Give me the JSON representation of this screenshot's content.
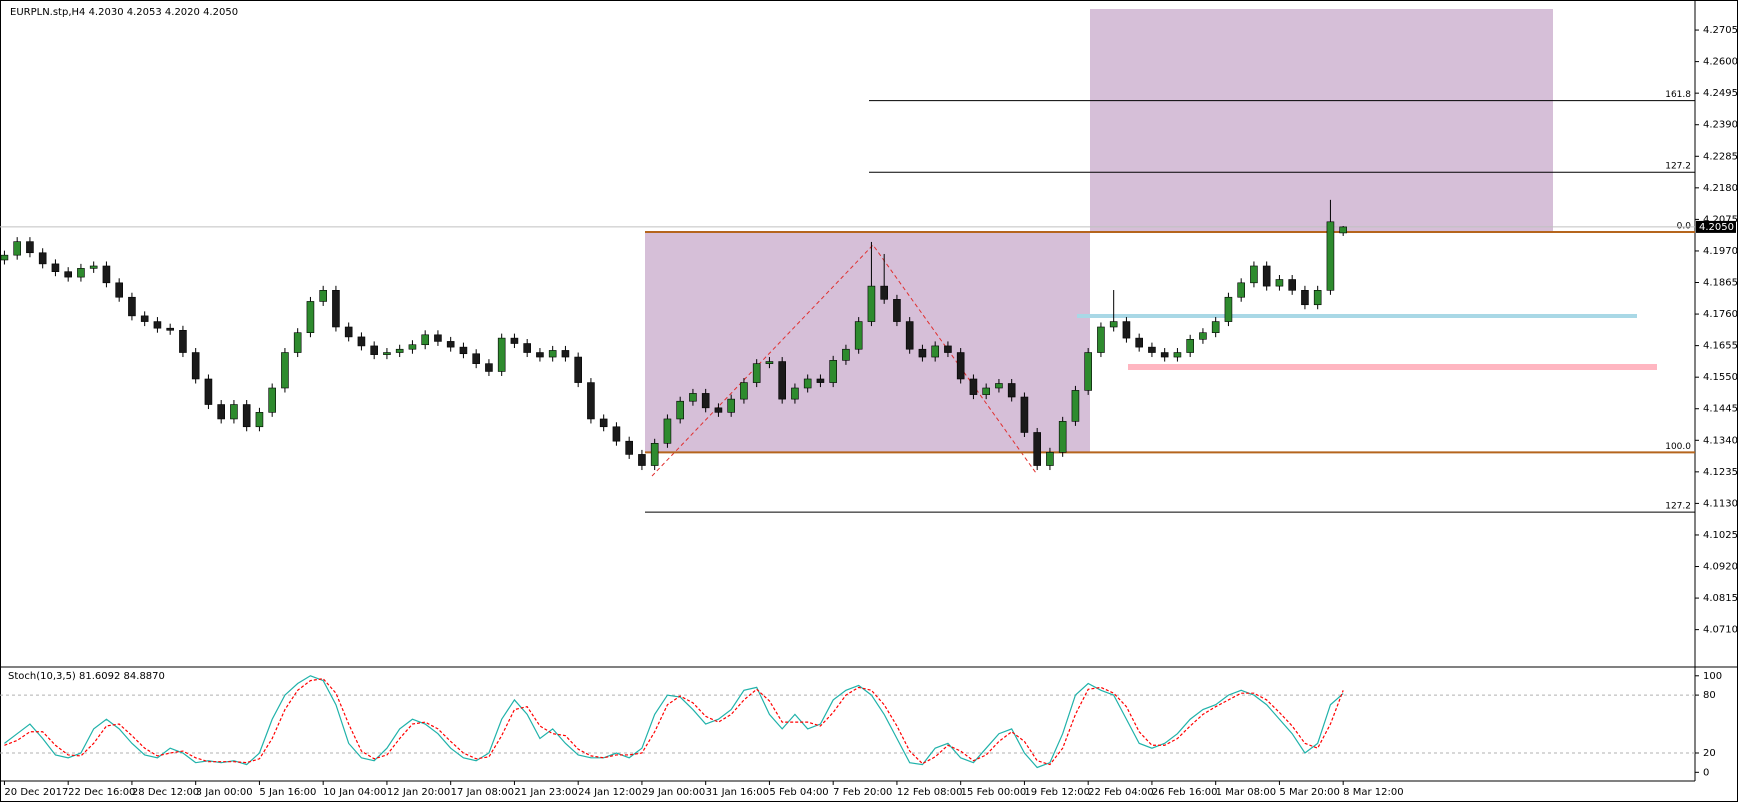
{
  "chart_data": {
    "type": "candlestick",
    "title": "EURPLN.stp,H4  4.2030 4.2053 4.2020 4.2050",
    "current_price_label": "4.2050",
    "ylim": [
      4.0589,
      4.2805
    ],
    "yticks": [
      4.2705,
      {
        "value": 4.26,
        "label": "4.2600"
      },
      4.2495,
      {
        "value": 4.239,
        "label": "4.2390"
      },
      4.2285,
      {
        "value": 4.218,
        "label": "4.2180"
      },
      4.2075,
      {
        "value": 4.197,
        "label": "4.1970"
      },
      4.1865,
      {
        "value": 4.176,
        "label": "4.1760"
      },
      4.1655,
      {
        "value": 4.155,
        "label": "4.1550"
      },
      4.1445,
      {
        "value": 4.134,
        "label": "4.1340"
      },
      4.1235,
      {
        "value": 4.113,
        "label": "4.1130"
      },
      4.1025,
      {
        "value": 4.092,
        "label": "4.0920"
      },
      4.0815,
      {
        "value": 4.071,
        "label": "4.0710"
      }
    ],
    "x_labels": [
      "20 Dec 2017",
      "22 Dec 16:00",
      "28 Dec 12:00",
      "3 Jan 00:00",
      "5 Jan 16:00",
      "10 Jan 04:00",
      "12 Jan 20:00",
      "17 Jan 08:00",
      "21 Jan 23:00",
      "24 Jan 12:00",
      "29 Jan 00:00",
      "31 Jan 16:00",
      "5 Feb 04:00",
      "7 Feb 20:00",
      "12 Feb 08:00",
      "15 Feb 00:00",
      "19 Feb 12:00",
      "22 Feb 04:00",
      "26 Feb 16:00",
      "1 Mar 08:00",
      "5 Mar 20:00",
      "8 Mar 12:00"
    ],
    "bull_color": "#2e8b2e",
    "bear_color": "#1a1a1a",
    "candles": [
      [
        4.194,
        4.1971,
        4.1925,
        4.1956
      ],
      [
        4.1956,
        4.2016,
        4.1941,
        4.2001
      ],
      [
        4.2001,
        4.2016,
        4.1949,
        4.1964
      ],
      [
        4.1964,
        4.1979,
        4.1912,
        4.1927
      ],
      [
        4.1927,
        4.1942,
        4.1886,
        4.1901
      ],
      [
        4.1901,
        4.1916,
        4.1868,
        4.1883
      ],
      [
        4.1883,
        4.1927,
        4.1868,
        4.1912
      ],
      [
        4.1912,
        4.1935,
        4.1897,
        4.192
      ],
      [
        4.192,
        4.1935,
        4.1849,
        4.1864
      ],
      [
        4.1864,
        4.1879,
        4.1801,
        4.1816
      ],
      [
        4.1816,
        4.1831,
        4.1739,
        4.1754
      ],
      [
        4.1754,
        4.1769,
        4.172,
        4.1735
      ],
      [
        4.1735,
        4.175,
        4.1698,
        4.1713
      ],
      [
        4.1713,
        4.1728,
        4.1691,
        4.1706
      ],
      [
        4.1706,
        4.1721,
        4.1617,
        4.1632
      ],
      [
        4.1632,
        4.1647,
        4.1529,
        4.1544
      ],
      [
        4.1544,
        4.1559,
        4.1444,
        4.1459
      ],
      [
        4.1459,
        4.1474,
        4.1396,
        4.1411
      ],
      [
        4.1411,
        4.1474,
        4.1396,
        4.1459
      ],
      [
        4.1459,
        4.1474,
        4.137,
        4.1385
      ],
      [
        4.1385,
        4.1448,
        4.137,
        4.1433
      ],
      [
        4.1433,
        4.1529,
        4.1418,
        4.1514
      ],
      [
        4.1514,
        4.1647,
        4.1499,
        4.1632
      ],
      [
        4.1632,
        4.1713,
        4.1617,
        4.1698
      ],
      [
        4.1698,
        4.1817,
        4.1683,
        4.1802
      ],
      [
        4.1802,
        4.1854,
        4.1787,
        4.1839
      ],
      [
        4.1839,
        4.1854,
        4.1702,
        4.1717
      ],
      [
        4.1717,
        4.1732,
        4.1669,
        4.1684
      ],
      [
        4.1684,
        4.1699,
        4.1639,
        4.1654
      ],
      [
        4.1654,
        4.1669,
        4.161,
        4.1625
      ],
      [
        4.1625,
        4.1647,
        4.161,
        4.1632
      ],
      [
        4.1632,
        4.1658,
        4.1617,
        4.1643
      ],
      [
        4.1643,
        4.1673,
        4.1628,
        4.1658
      ],
      [
        4.1658,
        4.1706,
        4.1643,
        4.1691
      ],
      [
        4.1691,
        4.1706,
        4.1654,
        4.1669
      ],
      [
        4.1669,
        4.1684,
        4.1635,
        4.165
      ],
      [
        4.165,
        4.1665,
        4.1613,
        4.1628
      ],
      [
        4.1628,
        4.1643,
        4.158,
        4.1595
      ],
      [
        4.1595,
        4.161,
        4.1554,
        4.1569
      ],
      [
        4.1569,
        4.1695,
        4.1554,
        4.168
      ],
      [
        4.168,
        4.1695,
        4.1647,
        4.1662
      ],
      [
        4.1662,
        4.1677,
        4.1617,
        4.1632
      ],
      [
        4.1632,
        4.1647,
        4.1602,
        4.1617
      ],
      [
        4.1617,
        4.1654,
        4.1602,
        4.1639
      ],
      [
        4.1639,
        4.1654,
        4.1602,
        4.1617
      ],
      [
        4.1617,
        4.1632,
        4.1517,
        4.1532
      ],
      [
        4.1532,
        4.1547,
        4.1396,
        4.1411
      ],
      [
        4.1411,
        4.1426,
        4.137,
        4.1385
      ],
      [
        4.1385,
        4.14,
        4.1322,
        4.1337
      ],
      [
        4.1337,
        4.1352,
        4.1278,
        4.1293
      ],
      [
        4.1293,
        4.1308,
        4.1241,
        4.1256
      ],
      [
        4.1256,
        4.1345,
        4.1241,
        4.133
      ],
      [
        4.133,
        4.1426,
        4.1315,
        4.1411
      ],
      [
        4.1411,
        4.1485,
        4.1396,
        4.147
      ],
      [
        4.147,
        4.1511,
        4.1455,
        4.1496
      ],
      [
        4.1496,
        4.1511,
        4.1433,
        4.1448
      ],
      [
        4.1448,
        4.1463,
        4.1418,
        4.1433
      ],
      [
        4.1433,
        4.1492,
        4.1418,
        4.1477
      ],
      [
        4.1477,
        4.1547,
        4.1462,
        4.1532
      ],
      [
        4.1532,
        4.161,
        4.1517,
        4.1595
      ],
      [
        4.1595,
        4.1617,
        4.158,
        4.1602
      ],
      [
        4.1602,
        4.1617,
        4.1462,
        4.1477
      ],
      [
        4.1477,
        4.1529,
        4.1462,
        4.1514
      ],
      [
        4.1514,
        4.1559,
        4.1499,
        4.1544
      ],
      [
        4.1544,
        4.1559,
        4.1517,
        4.1532
      ],
      [
        4.1532,
        4.1621,
        4.1517,
        4.1606
      ],
      [
        4.1606,
        4.1658,
        4.1591,
        4.1643
      ],
      [
        4.1643,
        4.175,
        4.1628,
        4.1735
      ],
      [
        4.1735,
        4.2,
        4.172,
        4.1853
      ],
      [
        4.1853,
        4.196,
        4.1794,
        4.1809
      ],
      [
        4.1809,
        4.1824,
        4.172,
        4.1735
      ],
      [
        4.1735,
        4.175,
        4.1628,
        4.1643
      ],
      [
        4.1643,
        4.1658,
        4.1602,
        4.1617
      ],
      [
        4.1617,
        4.1669,
        4.1602,
        4.1654
      ],
      [
        4.1654,
        4.1669,
        4.1617,
        4.1632
      ],
      [
        4.1632,
        4.1647,
        4.1529,
        4.1544
      ],
      [
        4.1544,
        4.1559,
        4.1477,
        4.1492
      ],
      [
        4.1492,
        4.1529,
        4.1477,
        4.1514
      ],
      [
        4.1514,
        4.1544,
        4.1499,
        4.1529
      ],
      [
        4.1529,
        4.1544,
        4.1469,
        4.1484
      ],
      [
        4.1484,
        4.1499,
        4.1351,
        4.1366
      ],
      [
        4.1366,
        4.1381,
        4.1241,
        4.1256
      ],
      [
        4.1256,
        4.1315,
        4.1241,
        4.13
      ],
      [
        4.13,
        4.1418,
        4.1285,
        4.1403
      ],
      [
        4.1403,
        4.1521,
        4.1388,
        4.1506
      ],
      [
        4.1506,
        4.1647,
        4.1491,
        4.1632
      ],
      [
        4.1632,
        4.1732,
        4.1617,
        4.1717
      ],
      [
        4.1717,
        4.184,
        4.1702,
        4.1735
      ],
      [
        4.1735,
        4.175,
        4.1665,
        4.168
      ],
      [
        4.168,
        4.1695,
        4.1635,
        4.165
      ],
      [
        4.165,
        4.1665,
        4.1617,
        4.1632
      ],
      [
        4.1632,
        4.1647,
        4.1602,
        4.1617
      ],
      [
        4.1617,
        4.1647,
        4.1602,
        4.1632
      ],
      [
        4.1632,
        4.1691,
        4.1617,
        4.1676
      ],
      [
        4.1676,
        4.1713,
        4.1661,
        4.1698
      ],
      [
        4.1698,
        4.175,
        4.1683,
        4.1735
      ],
      [
        4.1735,
        4.1831,
        4.172,
        4.1816
      ],
      [
        4.1816,
        4.1879,
        4.1801,
        4.1864
      ],
      [
        4.1864,
        4.1935,
        4.1849,
        4.192
      ],
      [
        4.192,
        4.1935,
        4.1838,
        4.1853
      ],
      [
        4.1853,
        4.189,
        4.1838,
        4.1875
      ],
      [
        4.1875,
        4.189,
        4.1824,
        4.1839
      ],
      [
        4.1839,
        4.1854,
        4.1776,
        4.1791
      ],
      [
        4.1791,
        4.1854,
        4.1776,
        4.1839
      ],
      [
        4.1839,
        4.214,
        4.1824,
        4.2067
      ],
      [
        4.203,
        4.2053,
        4.202,
        4.205
      ]
    ],
    "fib_levels": [
      {
        "value": 4.247,
        "label": "161.8"
      },
      {
        "value": 4.2232,
        "label": "127.2"
      },
      {
        "value": 4.2033,
        "label": "0.0"
      },
      {
        "value": 4.13,
        "label": "100.0"
      },
      {
        "value": 4.1101,
        "label": "127.2"
      }
    ],
    "stochastic": {
      "label": "Stoch(10,3,5) 81.6092 84.8870",
      "ylim": [
        -9,
        106
      ],
      "yticks": [
        0,
        20,
        80,
        100
      ],
      "series": [
        {
          "color": "#20b2aa",
          "values": [
            30,
            40,
            50,
            35,
            18,
            15,
            20,
            45,
            55,
            45,
            30,
            18,
            15,
            25,
            20,
            10,
            12,
            10,
            12,
            8,
            20,
            55,
            80,
            92,
            100,
            95,
            70,
            30,
            15,
            12,
            25,
            45,
            55,
            50,
            40,
            25,
            15,
            12,
            20,
            55,
            75,
            60,
            35,
            45,
            30,
            18,
            15,
            15,
            20,
            15,
            25,
            60,
            80,
            78,
            65,
            50,
            55,
            65,
            85,
            88,
            60,
            45,
            60,
            45,
            50,
            75,
            85,
            90,
            80,
            60,
            35,
            10,
            8,
            25,
            30,
            15,
            10,
            25,
            40,
            45,
            20,
            5,
            10,
            40,
            80,
            92,
            85,
            80,
            55,
            30,
            25,
            30,
            40,
            55,
            65,
            70,
            80,
            85,
            80,
            70,
            55,
            40,
            20,
            30,
            70,
            81.6092
          ]
        },
        {
          "color": "#ff0000",
          "values": [
            28,
            33,
            42,
            42,
            28,
            18,
            17,
            30,
            48,
            50,
            38,
            25,
            17,
            20,
            22,
            15,
            11,
            11,
            11,
            10,
            14,
            35,
            65,
            85,
            95,
            97,
            82,
            50,
            22,
            14,
            18,
            35,
            50,
            52,
            45,
            32,
            20,
            14,
            16,
            38,
            65,
            68,
            48,
            40,
            38,
            24,
            17,
            15,
            18,
            18,
            20,
            42,
            70,
            79,
            72,
            58,
            52,
            60,
            75,
            86,
            74,
            52,
            52,
            52,
            48,
            62,
            80,
            88,
            85,
            70,
            48,
            22,
            9,
            16,
            28,
            22,
            12,
            18,
            32,
            42,
            32,
            12,
            8,
            25,
            60,
            86,
            88,
            82,
            68,
            42,
            28,
            28,
            35,
            48,
            60,
            68,
            75,
            82,
            82,
            75,
            62,
            48,
            30,
            25,
            50,
            84.887
          ]
        }
      ]
    }
  }
}
